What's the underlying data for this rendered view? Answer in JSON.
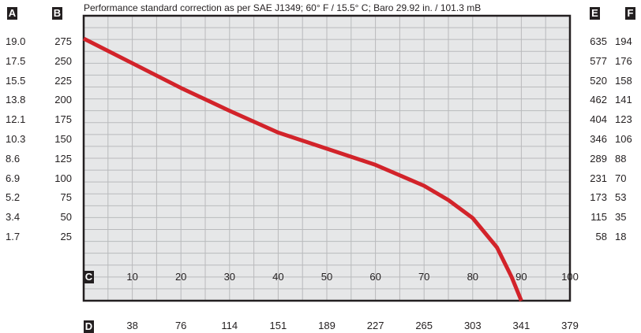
{
  "chart_data": {
    "type": "line",
    "note": "Performance standard correction as per SAE J1349; 60° F / 15.5° C; Baro 29.92 in. / 101.3 mB",
    "axis_tags": {
      "left_outer": "A",
      "left_inner": "B",
      "bottom_inner": "C",
      "bottom_outer": "D",
      "right_inner": "E",
      "right_outer": "F"
    },
    "axes": {
      "A": [
        "19.0",
        "17.5",
        "15.5",
        "13.8",
        "12.1",
        "10.3",
        "8.6",
        "6.9",
        "5.2",
        "3.4",
        "1.7"
      ],
      "B": [
        "275",
        "250",
        "225",
        "200",
        "175",
        "150",
        "125",
        "100",
        "75",
        "50",
        "25"
      ],
      "C": [
        "10",
        "20",
        "30",
        "40",
        "50",
        "60",
        "70",
        "80",
        "90",
        "100"
      ],
      "D": [
        "38",
        "76",
        "114",
        "151",
        "189",
        "227",
        "265",
        "303",
        "341",
        "379"
      ],
      "E": [
        "635",
        "577",
        "520",
        "462",
        "404",
        "346",
        "289",
        "231",
        "173",
        "115",
        "58"
      ],
      "F": [
        "194",
        "176",
        "158",
        "141",
        "123",
        "106",
        "88",
        "70",
        "53",
        "35",
        "18"
      ]
    },
    "xlim": [
      0,
      100
    ],
    "ylim": [
      0,
      300
    ],
    "grid": true,
    "series": [
      {
        "color": "#d2232a",
        "x": [
          0,
          10,
          20,
          30,
          40,
          50,
          60,
          70,
          75,
          80,
          85,
          88,
          90
        ],
        "y": [
          276,
          250,
          224,
          200,
          177,
          160,
          143,
          121,
          106,
          87,
          56,
          25,
          0
        ]
      }
    ]
  }
}
